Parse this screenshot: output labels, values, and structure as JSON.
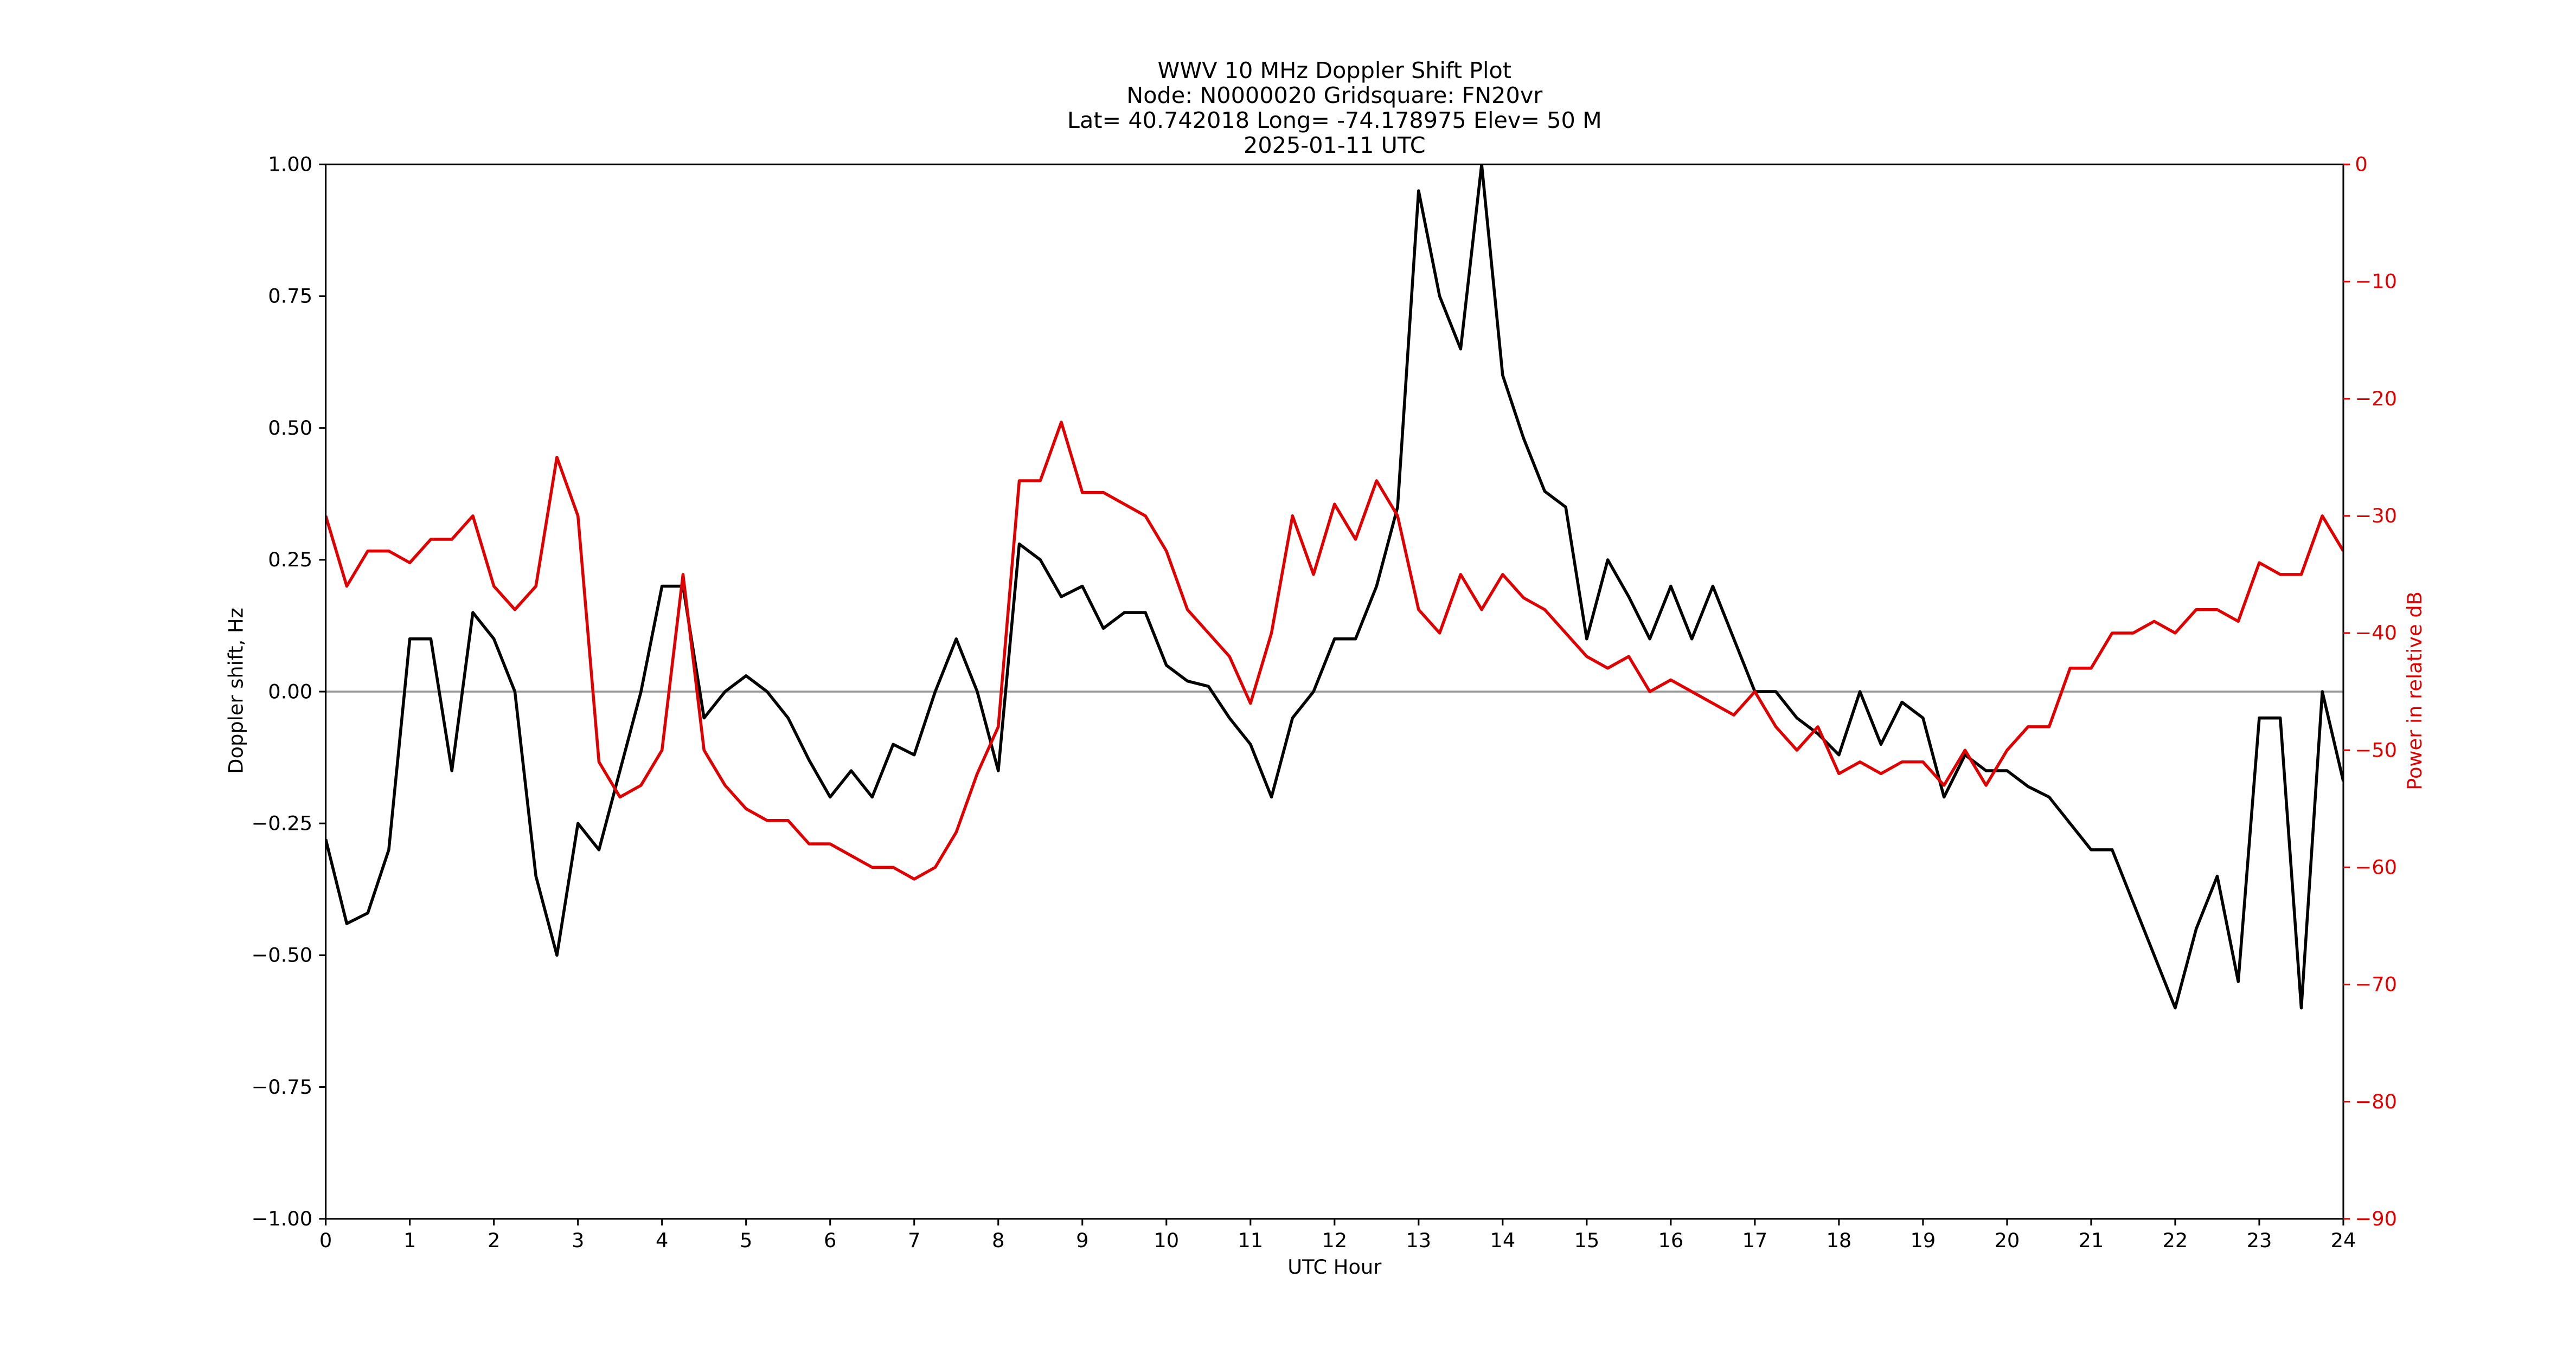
{
  "chart_data": {
    "type": "line",
    "title": [
      "WWV 10 MHz Doppler Shift Plot",
      "Node:  N0000020     Gridsquare:  FN20vr",
      "Lat= 40.742018    Long= -74.178975    Elev= 50 M",
      "2025-01-11  UTC"
    ],
    "x_label": "UTC Hour",
    "y_label": "Doppler shift, Hz",
    "y2_label": "Power in relative dB",
    "x": [
      0,
      0.25,
      0.5,
      0.75,
      1,
      1.25,
      1.5,
      1.75,
      2,
      2.25,
      2.5,
      2.75,
      3,
      3.25,
      3.5,
      3.75,
      4,
      4.25,
      4.5,
      4.75,
      5,
      5.25,
      5.5,
      5.75,
      6,
      6.25,
      6.5,
      6.75,
      7,
      7.25,
      7.5,
      7.75,
      8,
      8.25,
      8.5,
      8.75,
      9,
      9.25,
      9.5,
      9.75,
      10,
      10.25,
      10.5,
      10.75,
      11,
      11.25,
      11.5,
      11.75,
      12,
      12.25,
      12.5,
      12.75,
      13,
      13.25,
      13.5,
      13.75,
      14,
      14.25,
      14.5,
      14.75,
      15,
      15.25,
      15.5,
      15.75,
      16,
      16.25,
      16.5,
      16.75,
      17,
      17.25,
      17.5,
      17.75,
      18,
      18.25,
      18.5,
      18.75,
      19,
      19.25,
      19.5,
      19.75,
      20,
      20.25,
      20.5,
      20.75,
      21,
      21.25,
      21.5,
      21.75,
      22,
      22.25,
      22.5,
      22.75,
      23,
      23.25,
      23.5,
      23.75,
      24
    ],
    "series": [
      {
        "name": "Doppler shift",
        "color": "#000000",
        "axis": "y",
        "values": [
          -0.28,
          -0.44,
          -0.42,
          -0.3,
          0.1,
          0.1,
          -0.15,
          0.15,
          0.1,
          0.0,
          -0.35,
          -0.5,
          -0.25,
          -0.3,
          -0.15,
          0.0,
          0.2,
          0.2,
          -0.05,
          0.0,
          0.03,
          0.0,
          -0.05,
          -0.13,
          -0.2,
          -0.15,
          -0.2,
          -0.1,
          -0.12,
          0.0,
          0.1,
          0.0,
          -0.15,
          0.28,
          0.25,
          0.18,
          0.2,
          0.12,
          0.15,
          0.15,
          0.05,
          0.02,
          0.01,
          -0.05,
          -0.1,
          -0.2,
          -0.05,
          0.0,
          0.1,
          0.1,
          0.2,
          0.35,
          0.95,
          0.75,
          0.65,
          1.0,
          0.6,
          0.48,
          0.38,
          0.35,
          0.1,
          0.25,
          0.18,
          0.1,
          0.2,
          0.1,
          0.2,
          0.1,
          0.0,
          0.0,
          -0.05,
          -0.08,
          -0.12,
          0.0,
          -0.1,
          -0.02,
          -0.05,
          -0.2,
          -0.12,
          -0.15,
          -0.15,
          -0.18,
          -0.2,
          -0.25,
          -0.3,
          -0.3,
          -0.4,
          -0.5,
          -0.6,
          -0.45,
          -0.35,
          -0.55,
          -0.05,
          -0.05,
          -0.6,
          0.0,
          -0.17
        ]
      },
      {
        "name": "Power",
        "color": "#e00000",
        "axis": "y2",
        "values": [
          -30,
          -36,
          -33,
          -33,
          -34,
          -32,
          -32,
          -30,
          -36,
          -38,
          -36,
          -25,
          -30,
          -51,
          -54,
          -53,
          -50,
          -35,
          -50,
          -53,
          -55,
          -56,
          -56,
          -58,
          -58,
          -59,
          -60,
          -60,
          -61,
          -60,
          -57,
          -52,
          -48,
          -27,
          -27,
          -22,
          -28,
          -28,
          -29,
          -30,
          -33,
          -38,
          -40,
          -42,
          -46,
          -40,
          -30,
          -35,
          -29,
          -32,
          -27,
          -30,
          -38,
          -40,
          -35,
          -38,
          -35,
          -37,
          -38,
          -40,
          -42,
          -43,
          -42,
          -45,
          -44,
          -45,
          -46,
          -47,
          -45,
          -48,
          -50,
          -48,
          -52,
          -51,
          -52,
          -51,
          -51,
          -53,
          -50,
          -53,
          -50,
          -48,
          -48,
          -43,
          -43,
          -40,
          -40,
          -39,
          -40,
          -38,
          -38,
          -39,
          -34,
          -35,
          -35,
          -30,
          -33
        ]
      }
    ],
    "xlim": [
      0,
      24
    ],
    "xticks": [
      0,
      1,
      2,
      3,
      4,
      5,
      6,
      7,
      8,
      9,
      10,
      11,
      12,
      13,
      14,
      15,
      16,
      17,
      18,
      19,
      20,
      21,
      22,
      23,
      24
    ],
    "ylim": [
      -1,
      1
    ],
    "yticks": [
      {
        "value": -1,
        "label": "−1.00"
      },
      {
        "value": -0.75,
        "label": "−0.75"
      },
      {
        "value": -0.5,
        "label": "−0.50"
      },
      {
        "value": -0.25,
        "label": "−0.25"
      },
      {
        "value": 0,
        "label": "0.00"
      },
      {
        "value": 0.25,
        "label": "0.25"
      },
      {
        "value": 0.5,
        "label": "0.50"
      },
      {
        "value": 0.75,
        "label": "0.75"
      },
      {
        "value": 1,
        "label": "1.00"
      }
    ],
    "y2lim": [
      -90,
      0
    ],
    "y2ticks": [
      0,
      {
        "value": -10,
        "label": "−10"
      },
      {
        "value": -20,
        "label": "−20"
      },
      {
        "value": -30,
        "label": "−30"
      },
      {
        "value": -40,
        "label": "−40"
      },
      {
        "value": -50,
        "label": "−50"
      },
      {
        "value": -60,
        "label": "−60"
      },
      {
        "value": -70,
        "label": "−70"
      },
      {
        "value": -80,
        "label": "−80"
      },
      {
        "value": -90,
        "label": "−90"
      }
    ],
    "y2_color": "#e00000",
    "reference_line": 0,
    "reference_color": "#999999"
  }
}
